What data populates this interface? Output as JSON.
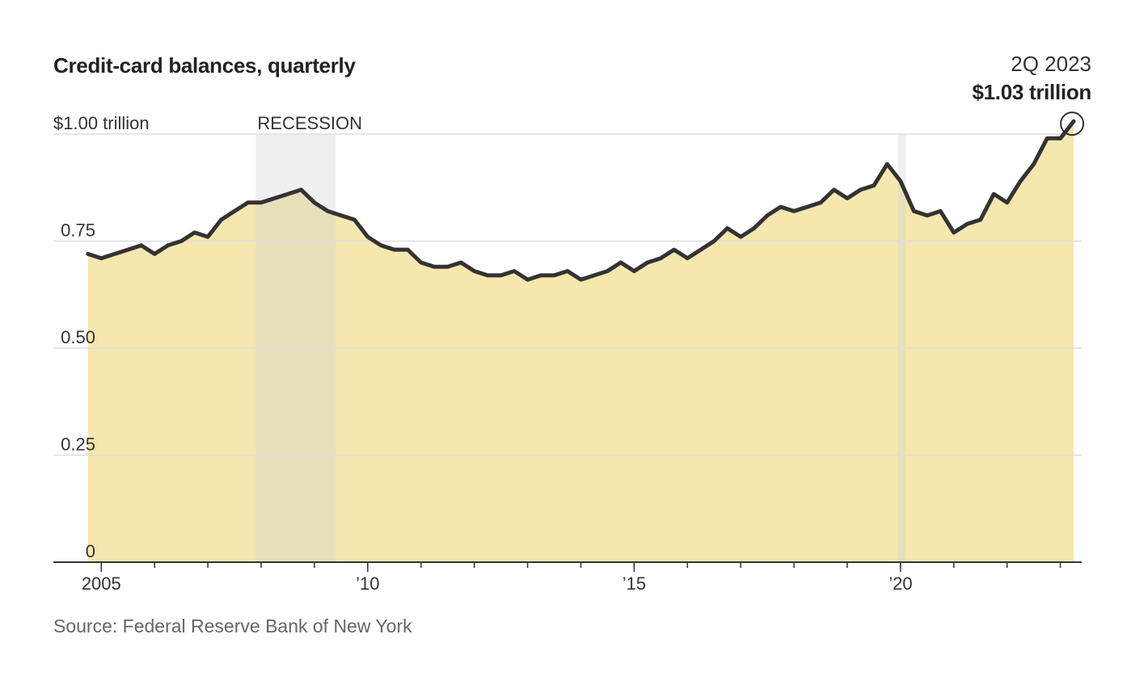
{
  "chart_data": {
    "type": "area",
    "title": "Credit-card balances, quarterly",
    "source": "Source: Federal Reserve Bank of New York",
    "y_unit": "trillion dollars",
    "ylim": [
      0,
      1.0
    ],
    "yticks": [
      {
        "value": 0,
        "label": "0"
      },
      {
        "value": 0.25,
        "label": "0.25"
      },
      {
        "value": 0.5,
        "label": "0.50"
      },
      {
        "value": 0.75,
        "label": "0.75"
      },
      {
        "value": 1.0,
        "label": "$1.00 trillion"
      }
    ],
    "xlim": [
      2004.1,
      2023.4
    ],
    "xticks": [
      {
        "value": 2005,
        "label": "2005"
      },
      {
        "value": 2010,
        "label": "’10"
      },
      {
        "value": 2015,
        "label": "’15"
      },
      {
        "value": 2020,
        "label": "’20"
      }
    ],
    "recessions": [
      {
        "start": 2007.9,
        "end": 2009.4,
        "label": "RECESSION"
      },
      {
        "start": 2019.95,
        "end": 2020.1,
        "label": ""
      }
    ],
    "grid": true,
    "series": [
      {
        "x": [
          2004.75,
          2005.0,
          2005.25,
          2005.5,
          2005.75,
          2006.0,
          2006.25,
          2006.5,
          2006.75,
          2007.0,
          2007.25,
          2007.5,
          2007.75,
          2008.0,
          2008.25,
          2008.5,
          2008.75,
          2009.0,
          2009.25,
          2009.5,
          2009.75,
          2010.0,
          2010.25,
          2010.5,
          2010.75,
          2011.0,
          2011.25,
          2011.5,
          2011.75,
          2012.0,
          2012.25,
          2012.5,
          2012.75,
          2013.0,
          2013.25,
          2013.5,
          2013.75,
          2014.0,
          2014.25,
          2014.5,
          2014.75,
          2015.0,
          2015.25,
          2015.5,
          2015.75,
          2016.0,
          2016.25,
          2016.5,
          2016.75,
          2017.0,
          2017.25,
          2017.5,
          2017.75,
          2018.0,
          2018.25,
          2018.5,
          2018.75,
          2019.0,
          2019.25,
          2019.5,
          2019.75,
          2020.0,
          2020.25,
          2020.5,
          2020.75,
          2021.0,
          2021.25,
          2021.5,
          2021.75,
          2022.0,
          2022.25,
          2022.5,
          2022.75,
          2023.0,
          2023.25
        ],
        "values": [
          0.72,
          0.71,
          0.72,
          0.73,
          0.74,
          0.72,
          0.74,
          0.75,
          0.77,
          0.76,
          0.8,
          0.82,
          0.84,
          0.84,
          0.85,
          0.86,
          0.87,
          0.84,
          0.82,
          0.81,
          0.8,
          0.76,
          0.74,
          0.73,
          0.73,
          0.7,
          0.69,
          0.69,
          0.7,
          0.68,
          0.67,
          0.67,
          0.68,
          0.66,
          0.67,
          0.67,
          0.68,
          0.66,
          0.67,
          0.68,
          0.7,
          0.68,
          0.7,
          0.71,
          0.73,
          0.71,
          0.73,
          0.75,
          0.78,
          0.76,
          0.78,
          0.81,
          0.83,
          0.82,
          0.83,
          0.84,
          0.87,
          0.85,
          0.87,
          0.88,
          0.93,
          0.89,
          0.82,
          0.81,
          0.82,
          0.77,
          0.79,
          0.8,
          0.86,
          0.84,
          0.89,
          0.93,
          0.99,
          0.99,
          1.03
        ]
      }
    ],
    "callout": {
      "period": "2Q 2023",
      "value": "$1.03 trillion",
      "x": 2023.25,
      "y": 1.03
    },
    "colors": {
      "fill": "#f5e7ae",
      "line": "#333333",
      "recession": "#c9ccd3",
      "grid": "#dddddd",
      "axis": "#333333"
    }
  }
}
